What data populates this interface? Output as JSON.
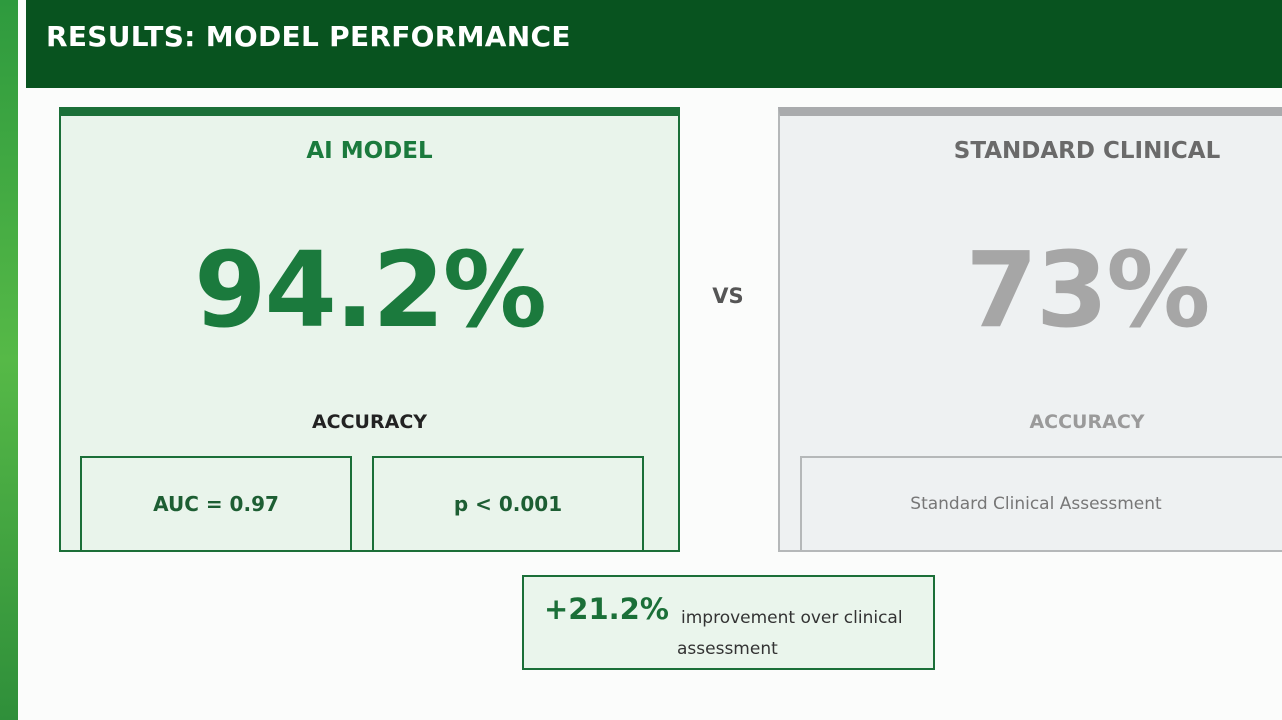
{
  "header": {
    "title": "RESULTS: MODEL PERFORMANCE"
  },
  "ai_card": {
    "title": "AI MODEL",
    "value": "94.2%",
    "label": "ACCURACY",
    "stats": [
      "AUC = 0.97",
      "p < 0.001"
    ]
  },
  "separator": "VS",
  "standard_card": {
    "title": "STANDARD CLINICAL",
    "value": "73%",
    "label": "ACCURACY",
    "note": "Standard Clinical Assessment"
  },
  "improvement": {
    "value": "+21.2%",
    "text": "improvement over clinical assessment"
  }
}
